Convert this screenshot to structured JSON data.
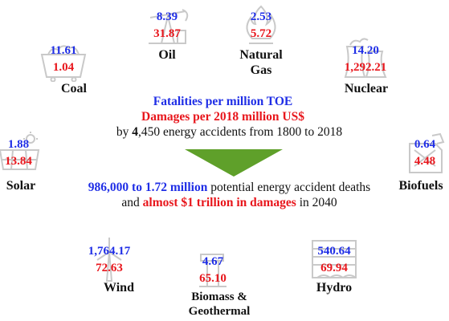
{
  "center": {
    "line1": "Fatalities per million TOE",
    "line2": "Damages per 2018 million US$",
    "line3_pre": "by ",
    "line3_bold": "4",
    "line3_post": ",450 energy accidents from 1800 to 2018",
    "line4_bold": "986,000 to 1.72 million",
    "line4_post": " potential energy accident deaths",
    "line5_pre": "and ",
    "line5_bold": "almost $1 trillion in damages",
    "line5_post": " in 2040"
  },
  "colors": {
    "fatalities": "#1f2ee6",
    "damages": "#e8161c",
    "arrow": "#5fa02a"
  },
  "sources": [
    {
      "key": "coal",
      "name": "Coal",
      "fatalities": "11.61",
      "damages": "1.04",
      "icon": "coal-cart-icon"
    },
    {
      "key": "oil",
      "name": "Oil",
      "fatalities": "8.39",
      "damages": "31.87",
      "icon": "oil-pump-icon"
    },
    {
      "key": "gas",
      "name": "Natural Gas",
      "name_line1": "Natural",
      "name_line2": "Gas",
      "fatalities": "2.53",
      "damages": "5.72",
      "icon": "gas-flame-icon"
    },
    {
      "key": "nuclear",
      "name": "Nuclear",
      "fatalities": "14.20",
      "damages": "1,292.21",
      "icon": "nuclear-plant-icon"
    },
    {
      "key": "solar",
      "name": "Solar",
      "fatalities": "1.88",
      "damages": "13.84",
      "icon": "solar-panel-icon"
    },
    {
      "key": "biofuels",
      "name": "Biofuels",
      "fatalities": "0.64",
      "damages": "4.48",
      "icon": "fuel-can-icon"
    },
    {
      "key": "wind",
      "name": "Wind",
      "fatalities": "1,764.17",
      "damages": "72.63",
      "icon": "wind-turbine-icon"
    },
    {
      "key": "biomass",
      "name": "Biomass & Geothermal",
      "name_line1": "Biomass &",
      "name_line2": "Geothermal",
      "fatalities": "4.67",
      "damages": "65.10",
      "icon": "biomass-geothermal-icon"
    },
    {
      "key": "hydro",
      "name": "Hydro",
      "fatalities": "540.64",
      "damages": "69.94",
      "icon": "hydro-dam-icon"
    }
  ]
}
